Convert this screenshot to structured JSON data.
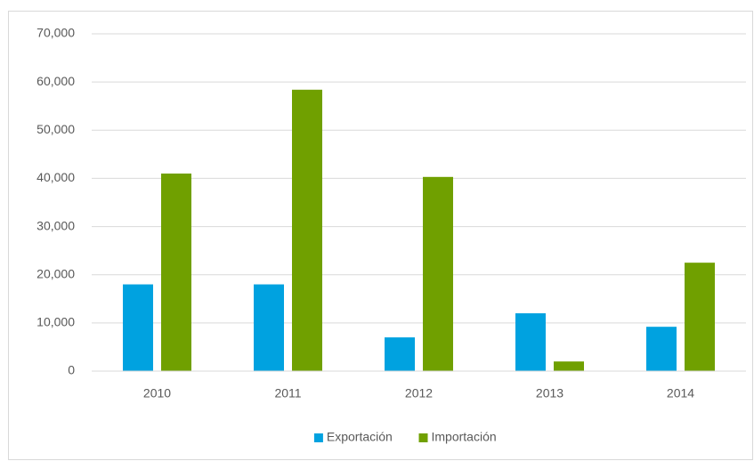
{
  "chart_data": {
    "type": "bar",
    "categories": [
      "2010",
      "2011",
      "2012",
      "2013",
      "2014"
    ],
    "series": [
      {
        "name": "Exportación",
        "color": "#00a2e0",
        "values": [
          18000,
          18000,
          7000,
          12000,
          9200
        ]
      },
      {
        "name": "Importación",
        "color": "#70a000",
        "values": [
          41000,
          58400,
          40300,
          2000,
          22500
        ]
      }
    ],
    "ylim": [
      0,
      70000
    ],
    "yticks": [
      0,
      {
        "value": 10000,
        "label": "10,000"
      },
      {
        "value": 20000,
        "label": "20,000"
      },
      {
        "value": 30000,
        "label": "30,000"
      },
      {
        "value": 40000,
        "label": "40,000"
      },
      {
        "value": 50000,
        "label": "50,000"
      },
      {
        "value": 60000,
        "label": "60,000"
      },
      {
        "value": 70000,
        "label": "70,000"
      }
    ],
    "grid": true,
    "legend": "bottom"
  }
}
